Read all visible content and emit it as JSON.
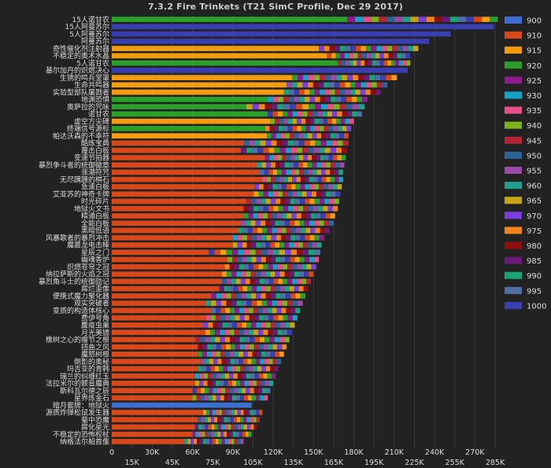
{
  "chart_data": {
    "type": "bar",
    "stacked": true,
    "orientation": "horizontal",
    "title": "7.3.2 Fire Trinkets (T21 SimC Profile, Dec 29 2017)",
    "xlim": [
      0,
      285000
    ],
    "xticks": [
      "0",
      "15K",
      "30K",
      "45K",
      "60K",
      "75K",
      "90K",
      "105K",
      "120K",
      "135K",
      "150K",
      "165K",
      "180K",
      "195K",
      "210K",
      "225K",
      "240K",
      "255K",
      "270K",
      "285K"
    ],
    "legend_position": "right",
    "grid": true,
    "legend": [
      {
        "name": "900",
        "color": "#3d6fd1"
      },
      {
        "name": "910",
        "color": "#d9481a"
      },
      {
        "name": "915",
        "color": "#f39c12"
      },
      {
        "name": "920",
        "color": "#2ba02b"
      },
      {
        "name": "925",
        "color": "#8e1c8e"
      },
      {
        "name": "930",
        "color": "#17a2c8"
      },
      {
        "name": "935",
        "color": "#e84f88"
      },
      {
        "name": "940",
        "color": "#7db21f"
      },
      {
        "name": "945",
        "color": "#b42535"
      },
      {
        "name": "950",
        "color": "#2f6296"
      },
      {
        "name": "955",
        "color": "#9b4aa6"
      },
      {
        "name": "960",
        "color": "#22a08e"
      },
      {
        "name": "965",
        "color": "#c6a713"
      },
      {
        "name": "970",
        "color": "#7b3fe0"
      },
      {
        "name": "975",
        "color": "#f08419"
      },
      {
        "name": "980",
        "color": "#8e0f0f"
      },
      {
        "name": "985",
        "color": "#6b1b7a"
      },
      {
        "name": "990",
        "color": "#18a575"
      },
      {
        "name": "995",
        "color": "#4f6fa6"
      },
      {
        "name": "1000",
        "color": "#3a3fb0"
      }
    ],
    "series_colors": [
      "#d9481a",
      "#f39c12",
      "#2ba02b",
      "#8e1c8e",
      "#17a2c8",
      "#e84f88",
      "#7db21f",
      "#b42535",
      "#2f6296",
      "#9b4aa6",
      "#22a08e",
      "#c6a713",
      "#7b3fe0",
      "#f08419",
      "#8e0f0f",
      "#6b1b7a",
      "#18a575",
      "#4f6fa6",
      "#3a3fb0"
    ],
    "rows": [
      {
        "label": "15人诺甘农",
        "base": 175000,
        "color": "#2ba02b",
        "total": 287000
      },
      {
        "label": "15人阿曼苏尔",
        "base": 284000,
        "color": "#3a3fb0",
        "total": 284000
      },
      {
        "label": "5人阿曼苏尔",
        "base": 252000,
        "color": "#3a3fb0",
        "total": 252000
      },
      {
        "label": "阿曼苏尔",
        "base": 236000,
        "color": "#3a3fb0",
        "total": 236000
      },
      {
        "label": "奇性催化剂注射器",
        "base": 154000,
        "color": "#f39c12",
        "total": 228000
      },
      {
        "label": "不稳定的奥术水晶",
        "base": 160000,
        "color": "#f39c12",
        "total": 222000
      },
      {
        "label": "5人诺甘农",
        "base": 168000,
        "color": "#2ba02b",
        "total": 222000
      },
      {
        "label": "基尔加丹的炽燃决心",
        "base": 220000,
        "color": "#3a3fb0",
        "total": 220000
      },
      {
        "label": "生锈的鸣兵堂罩",
        "base": 134000,
        "color": "#f39c12",
        "total": 212000
      },
      {
        "label": "生命共鸣器",
        "base": 130000,
        "color": "#f39c12",
        "total": 205000
      },
      {
        "label": "实验型部队屠戮者",
        "base": 128000,
        "color": "#f39c12",
        "total": 200000
      },
      {
        "label": "地渊恐惧",
        "base": 116000,
        "color": "#2ba02b",
        "total": 190000
      },
      {
        "label": "奥萨拉的咒咏",
        "base": 100000,
        "color": "#2ba02b",
        "total": 188000
      },
      {
        "label": "诺甘农",
        "base": 116000,
        "color": "#2ba02b",
        "total": 186000
      },
      {
        "label": "虚空方尖碑",
        "base": 118000,
        "color": "#f39c12",
        "total": 180000
      },
      {
        "label": "终端信号源标",
        "base": 114000,
        "color": "#2ba02b",
        "total": 178000
      },
      {
        "label": "帕达沃森的不幸符",
        "base": 112000,
        "color": "#f39c12",
        "total": 176000
      },
      {
        "label": "酷炼宝典",
        "base": 98000,
        "color": "#d9481a",
        "total": 176000
      },
      {
        "label": "蔑击白板",
        "base": 96000,
        "color": "#d9481a",
        "total": 175000
      },
      {
        "label": "变速节拍器",
        "base": 114000,
        "color": "#d9481a",
        "total": 174000
      },
      {
        "label": "暴烈争斗者的统御徽章",
        "base": 108000,
        "color": "#d9481a",
        "total": 173000
      },
      {
        "label": "涨潮符咒",
        "base": 110000,
        "color": "#d9481a",
        "total": 172000
      },
      {
        "label": "无尽蹒跚的棋石",
        "base": 112000,
        "color": "#d9481a",
        "total": 172000
      },
      {
        "label": "急速白板",
        "base": 106000,
        "color": "#d9481a",
        "total": 171000
      },
      {
        "label": "艾亚苏的神奇卡牌",
        "base": 102000,
        "color": "#d9481a",
        "total": 170000
      },
      {
        "label": "时光碎片",
        "base": 100000,
        "color": "#d9481a",
        "total": 169000
      },
      {
        "label": "地狱火文书",
        "base": 98000,
        "color": "#d9481a",
        "total": 168000
      },
      {
        "label": "精通白板",
        "base": 98000,
        "color": "#d9481a",
        "total": 166000
      },
      {
        "label": "全能白板",
        "base": 96000,
        "color": "#d9481a",
        "total": 165000
      },
      {
        "label": "黑暗低语",
        "base": 94000,
        "color": "#d9481a",
        "total": 162000
      },
      {
        "label": "风暴歌者的暴烈冲击",
        "base": 90000,
        "color": "#d9481a",
        "total": 158000
      },
      {
        "label": "魔晨龙电击棒",
        "base": 90000,
        "color": "#d9481a",
        "total": 156000
      },
      {
        "label": "星辰之门",
        "base": 72000,
        "color": "#d9481a",
        "total": 155000
      },
      {
        "label": "幽魂香炉",
        "base": 86000,
        "color": "#d9481a",
        "total": 154000
      },
      {
        "label": "炽燃苍穹之冠",
        "base": 84000,
        "color": "#d9481a",
        "total": 152000
      },
      {
        "label": "纳拉萨斯的火焰之冠",
        "base": 82000,
        "color": "#d9481a",
        "total": 150000
      },
      {
        "label": "暴烈角斗士的统御勋记",
        "base": 82000,
        "color": "#d9481a",
        "total": 148000
      },
      {
        "label": "腐烂歪像",
        "base": 80000,
        "color": "#d9481a",
        "total": 146000
      },
      {
        "label": "便携式魔力聚化器",
        "base": 74000,
        "color": "#d9481a",
        "total": 144000
      },
      {
        "label": "观实突破者",
        "base": 70000,
        "color": "#d9481a",
        "total": 142000
      },
      {
        "label": "变质的构造体核心",
        "base": 74000,
        "color": "#d9481a",
        "total": 140000
      },
      {
        "label": "费伊号角",
        "base": 70000,
        "color": "#d9481a",
        "total": 138000
      },
      {
        "label": "麋疫虫巢",
        "base": 68000,
        "color": "#d9481a",
        "total": 136000
      },
      {
        "label": "月光美镜",
        "base": 66000,
        "color": "#d9481a",
        "total": 134000
      },
      {
        "label": "橡树之心的瘤节之根",
        "base": 62000,
        "color": "#d9481a",
        "total": 132000
      },
      {
        "label": "扭曲之风",
        "base": 64000,
        "color": "#d9481a",
        "total": 130000
      },
      {
        "label": "魔怒树根",
        "base": 64000,
        "color": "#d9481a",
        "total": 128000
      },
      {
        "label": "倒影的奥秘",
        "base": 66000,
        "color": "#d9481a",
        "total": 126000
      },
      {
        "label": "玛吉亚的青韩",
        "base": 64000,
        "color": "#d9481a",
        "total": 124000
      },
      {
        "label": "瑞兰的纠缠红玉",
        "base": 62000,
        "color": "#d9481a",
        "total": 122000
      },
      {
        "label": "法拉米尔的颤音魔典",
        "base": 62000,
        "color": "#d9481a",
        "total": 120000
      },
      {
        "label": "斯科瓦尔德之辰",
        "base": 60000,
        "color": "#d9481a",
        "total": 118000
      },
      {
        "label": "星界炼金石",
        "base": 60000,
        "color": "#d9481a",
        "total": 116000
      },
      {
        "label": "暗月套牌：地狱火",
        "base": 104000,
        "color": "#3d6fd1",
        "total": 104000
      },
      {
        "label": "源质炸弹松鼠发生器",
        "base": 68000,
        "color": "#d9481a",
        "total": 112000
      },
      {
        "label": "菊中恐魔",
        "base": 64000,
        "color": "#d9481a",
        "total": 110000
      },
      {
        "label": "腐化星光",
        "base": 62000,
        "color": "#d9481a",
        "total": 108000
      },
      {
        "label": "不稳定的恐怖权杖",
        "base": 60000,
        "color": "#d9481a",
        "total": 104000
      },
      {
        "label": "纳格法尔船首像",
        "base": 54000,
        "color": "#d9481a",
        "total": 98000
      }
    ]
  }
}
